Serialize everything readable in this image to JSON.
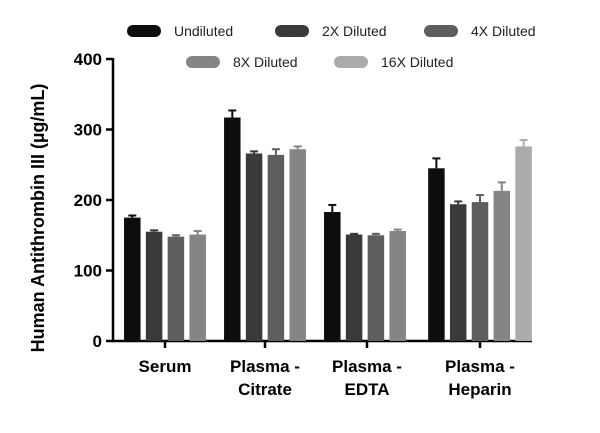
{
  "chart_data": {
    "type": "bar",
    "title": "",
    "xlabel": "",
    "ylabel": "Human Antithrombin III (µg/mL)",
    "ylim": [
      0,
      400
    ],
    "yticks": [
      0,
      100,
      200,
      300,
      400
    ],
    "categories": [
      [
        "Serum"
      ],
      [
        "Plasma -",
        "Citrate"
      ],
      [
        "Plasma -",
        "EDTA"
      ],
      [
        "Plasma -",
        "Heparin"
      ]
    ],
    "legend_position": "top",
    "series": [
      {
        "name": "Undiluted",
        "color": "#0d0d0d",
        "values": [
          175,
          317,
          183,
          245
        ],
        "errors": [
          3,
          10,
          10,
          14
        ]
      },
      {
        "name": "2X Diluted",
        "color": "#3a3a3a",
        "values": [
          155,
          266,
          151,
          194
        ],
        "errors": [
          2,
          3,
          1,
          4
        ]
      },
      {
        "name": "4X Diluted",
        "color": "#5e5e5e",
        "values": [
          148,
          264,
          150,
          197
        ],
        "errors": [
          2,
          8,
          2,
          10
        ]
      },
      {
        "name": "8X Diluted",
        "color": "#858585",
        "values": [
          151,
          272,
          156,
          213
        ],
        "errors": [
          5,
          4,
          2,
          12
        ]
      },
      {
        "name": "16X Diluted",
        "color": "#ababab",
        "values": [
          null,
          null,
          null,
          276
        ],
        "errors": [
          null,
          null,
          null,
          9
        ]
      }
    ]
  }
}
